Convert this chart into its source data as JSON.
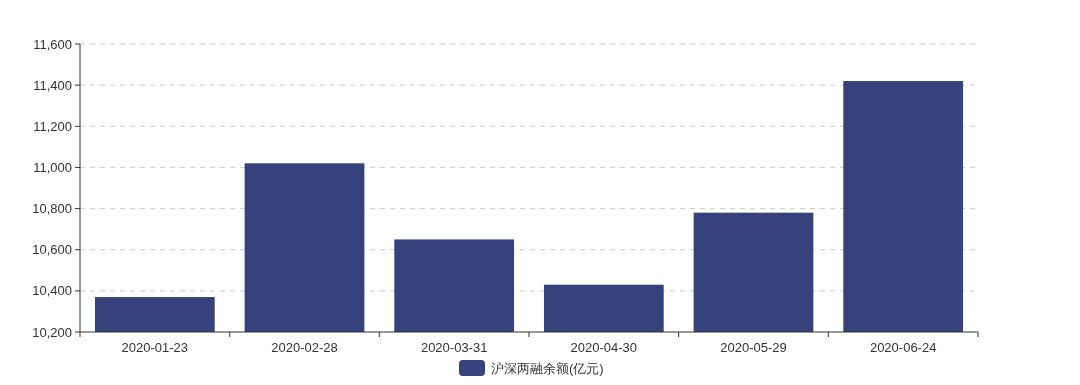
{
  "chart_data": {
    "type": "bar",
    "categories": [
      "2020-01-23",
      "2020-02-28",
      "2020-03-31",
      "2020-04-30",
      "2020-05-29",
      "2020-06-24"
    ],
    "series": [
      {
        "name": "沪深两融余额(亿元)",
        "color": "#36427b",
        "values": [
          10370,
          11020,
          10650,
          10430,
          10780,
          11420
        ]
      }
    ],
    "ylim": [
      10200,
      11600
    ],
    "yticks": [
      {
        "value": 10200,
        "label": "10,200"
      },
      {
        "value": 10400,
        "label": "10,400"
      },
      {
        "value": 10600,
        "label": "10,600"
      },
      {
        "value": 10800,
        "label": "10,800"
      },
      {
        "value": 11000,
        "label": "11,000"
      },
      {
        "value": 11200,
        "label": "11,200"
      },
      {
        "value": 11400,
        "label": "11,400"
      },
      {
        "value": 11600,
        "label": "11,600"
      }
    ],
    "grid": "y",
    "legend": "bottom"
  }
}
